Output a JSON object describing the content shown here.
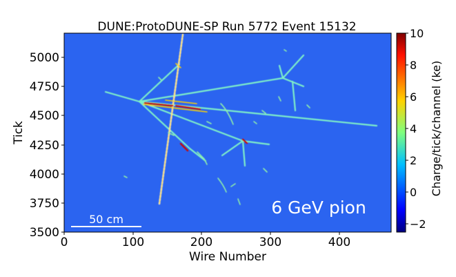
{
  "figure": {
    "title": "DUNE:ProtoDUNE-SP Run 5772 Event 15132",
    "xlabel": "Wire Number",
    "ylabel": "Tick",
    "x_ticks": [
      "0",
      "100",
      "200",
      "300",
      "400"
    ],
    "y_ticks": [
      "3500",
      "3750",
      "4000",
      "4250",
      "4500",
      "4750",
      "5000"
    ],
    "scale_bar_label": "50 cm",
    "annotation": "6 GeV pion",
    "colorbar": {
      "label": "Charge/tick/channel (ke)",
      "ticks": [
        "10",
        "8",
        "6",
        "4",
        "2",
        "0",
        "−2"
      ],
      "range": [
        -2.5,
        10
      ],
      "colormap": "jet"
    },
    "x_range": [
      0,
      475
    ],
    "y_range": [
      3500,
      5200
    ],
    "background_color": "#2b64f0"
  }
}
